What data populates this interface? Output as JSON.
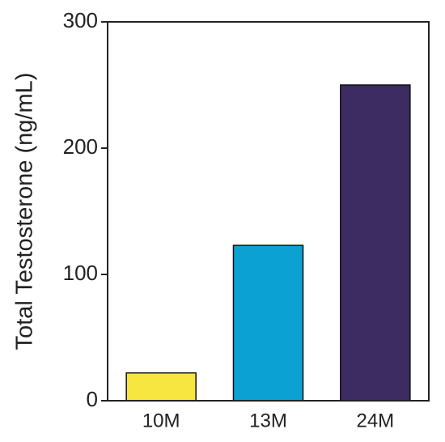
{
  "chart_data": {
    "type": "bar",
    "y_label": "Total Testosterone (ng/mL)",
    "categories": [
      "10M",
      "13M",
      "24M"
    ],
    "values": [
      22,
      123,
      250
    ],
    "colors": [
      "#f6e63f",
      "#0ba2d3",
      "#3c2c62"
    ],
    "ylim": [
      0,
      300
    ],
    "yticks": [
      0,
      100,
      200,
      300
    ],
    "grid": false
  }
}
